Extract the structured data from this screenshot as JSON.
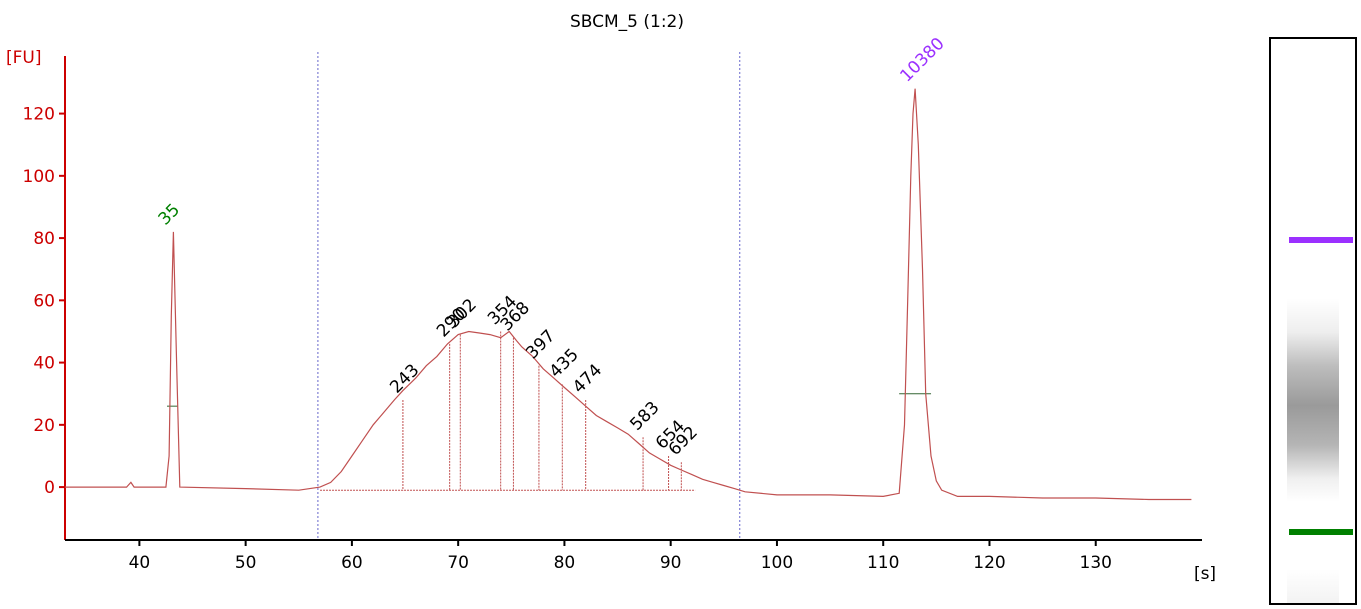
{
  "chart_data": {
    "type": "line",
    "title": "SBCM_5 (1:2)",
    "ylabel": "[FU]",
    "xlabel": "[s]",
    "xlim": [
      33,
      140
    ],
    "ylim": [
      -17,
      143
    ],
    "x_ticks": [
      40,
      50,
      60,
      70,
      80,
      90,
      100,
      110,
      120,
      130
    ],
    "y_ticks": [
      0,
      20,
      40,
      60,
      80,
      100,
      120
    ],
    "grid": false,
    "colors": {
      "axis": "#cc0000",
      "trace": "#c05050",
      "lower_marker": "#008000",
      "upper_marker": "#9b30ff",
      "region_line": "#6666cc",
      "label": "#000000"
    },
    "series": [
      {
        "x": [
          33,
          38.8,
          39.2,
          39.5,
          42.5,
          42.8,
          43.0,
          43.2,
          43.5,
          43.8,
          50,
          55,
          57,
          58,
          59,
          60,
          61,
          62,
          63,
          64,
          64.8,
          66,
          67,
          68,
          69,
          70,
          71,
          72,
          73,
          74,
          74.8,
          75.5,
          76,
          77,
          78,
          79,
          80,
          81,
          82,
          83,
          84,
          85,
          86,
          87,
          88,
          89,
          90,
          91,
          92,
          93,
          94,
          95,
          96,
          97,
          100,
          105,
          110,
          111.5,
          112.0,
          112.3,
          112.6,
          112.8,
          113.0,
          113.3,
          113.7,
          114.0,
          114.5,
          115.0,
          115.5,
          117,
          120,
          125,
          130,
          135,
          139
        ],
        "y": [
          0,
          0,
          1.5,
          0,
          0,
          10,
          55,
          82,
          40,
          0,
          -0.5,
          -1,
          0,
          1.5,
          5,
          10,
          15,
          20,
          24,
          28,
          31,
          35,
          39,
          42,
          46,
          49,
          50,
          49.5,
          49,
          48,
          50,
          47,
          45,
          42,
          38,
          35,
          32,
          29,
          26,
          23,
          21,
          19,
          17,
          14,
          11,
          9,
          7,
          5.5,
          4,
          2.5,
          1.5,
          0.5,
          -0.5,
          -1.5,
          -2.5,
          -2.5,
          -3,
          -2,
          20,
          60,
          100,
          120,
          128,
          110,
          70,
          30,
          10,
          2,
          -1,
          -3,
          -3,
          -3.5,
          -3.5,
          -4,
          -4
        ]
      }
    ],
    "annotations": {
      "lower_marker_label": "35",
      "upper_marker_label": "10380",
      "peak_labels": [
        "243",
        "290",
        "302",
        "354",
        "368",
        "397",
        "435",
        "474",
        "583",
        "654",
        "692"
      ]
    },
    "peaks": [
      {
        "label": "243",
        "x": 64.8,
        "y": 28
      },
      {
        "label": "290",
        "x": 69.2,
        "y": 46
      },
      {
        "label": "302",
        "x": 70.2,
        "y": 49
      },
      {
        "label": "354",
        "x": 74.0,
        "y": 50
      },
      {
        "label": "368",
        "x": 75.2,
        "y": 48
      },
      {
        "label": "397",
        "x": 77.6,
        "y": 39
      },
      {
        "label": "435",
        "x": 79.8,
        "y": 33
      },
      {
        "label": "474",
        "x": 82.0,
        "y": 28
      },
      {
        "label": "583",
        "x": 87.4,
        "y": 16
      },
      {
        "label": "654",
        "x": 89.8,
        "y": 10
      },
      {
        "label": "692",
        "x": 91.0,
        "y": 8
      }
    ],
    "markers": [
      {
        "label": "35",
        "x": 43.0,
        "y": 82,
        "color": "#008000"
      },
      {
        "label": "10380",
        "x": 112.8,
        "y": 128,
        "color": "#9b30ff"
      }
    ],
    "region_bounds": [
      56.8,
      96.5
    ]
  },
  "gel_lane": {
    "lower_band_color": "#008000",
    "upper_band_color": "#9b30ff"
  }
}
